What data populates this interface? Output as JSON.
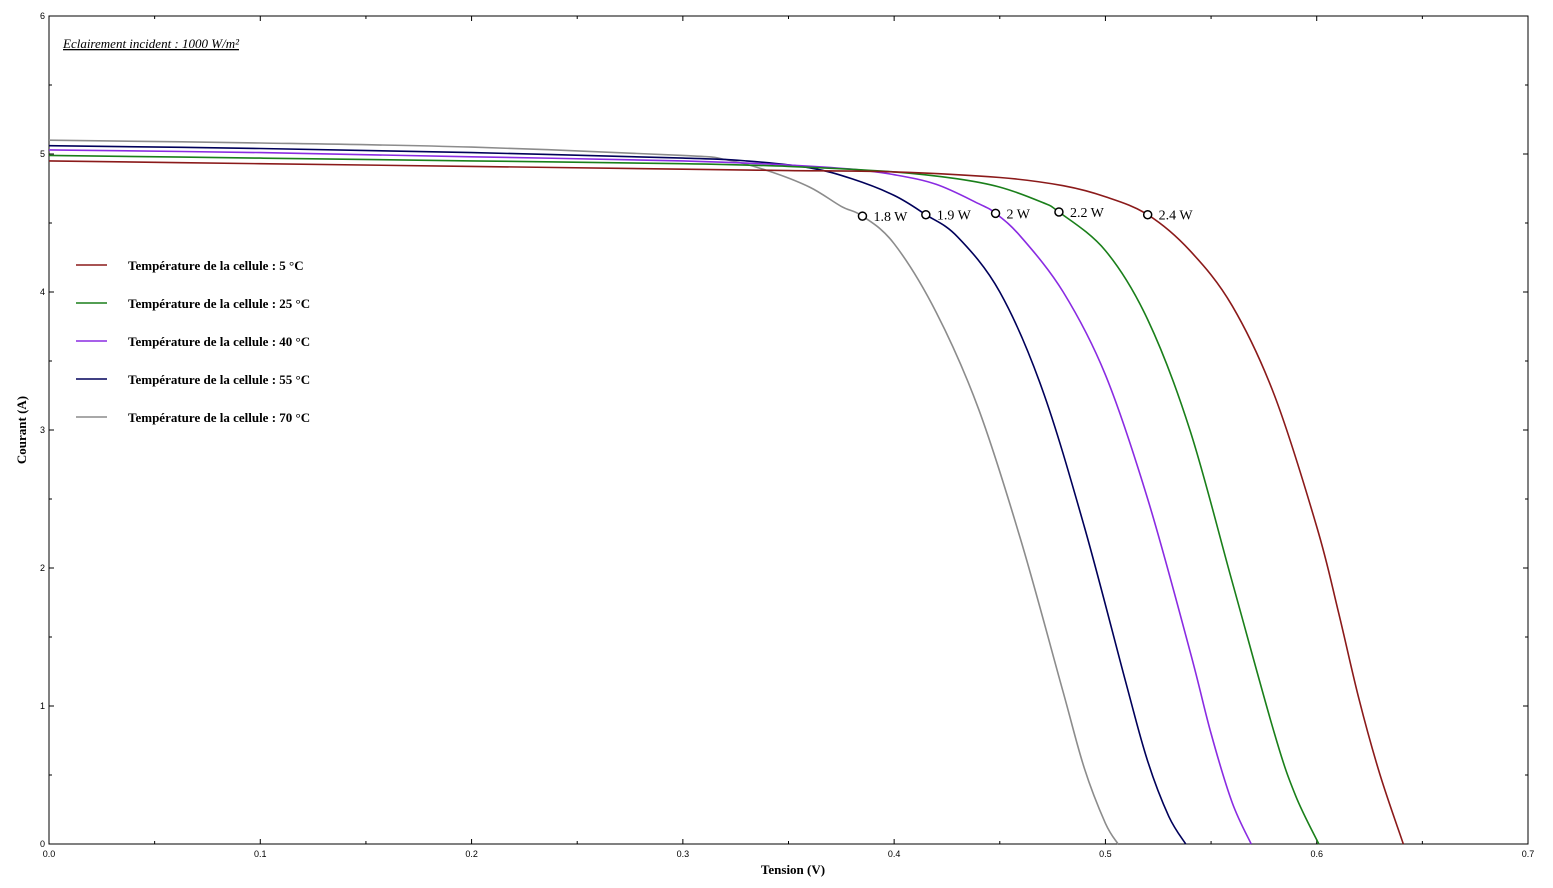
{
  "chart_data": {
    "type": "line",
    "title": "",
    "note": "Eclairement incident : 1000 W/m²",
    "xlabel": "Tension (V)",
    "ylabel": "Courant (A)",
    "xlim": [
      0,
      0.7
    ],
    "ylim": [
      0,
      6
    ],
    "xticks": [
      "0.0",
      "0.1",
      "0.2",
      "0.3",
      "0.4",
      "0.5",
      "0.6",
      "0.7"
    ],
    "yticks": [
      "0",
      "1",
      "2",
      "3",
      "4",
      "5",
      "6"
    ],
    "grid": false,
    "legend_position": "left",
    "series": [
      {
        "name": "Température de la cellule : 5 °C",
        "color": "#8b1a1a",
        "x": [
          0,
          0.1,
          0.2,
          0.3,
          0.35,
          0.4,
          0.45,
          0.48,
          0.5,
          0.52,
          0.54,
          0.56,
          0.58,
          0.6,
          0.61,
          0.62,
          0.63,
          0.641
        ],
        "y": [
          4.95,
          4.93,
          4.91,
          4.89,
          4.88,
          4.87,
          4.83,
          4.77,
          4.69,
          4.56,
          4.3,
          3.9,
          3.25,
          2.3,
          1.7,
          1.05,
          0.5,
          0.0
        ],
        "mpp": {
          "x": 0.52,
          "y": 4.56,
          "label": "2.4 W"
        }
      },
      {
        "name": "Température de la cellule : 25 °C",
        "color": "#1a7f1a",
        "x": [
          0,
          0.1,
          0.2,
          0.3,
          0.35,
          0.4,
          0.43,
          0.45,
          0.47,
          0.478,
          0.5,
          0.52,
          0.54,
          0.56,
          0.58,
          0.59,
          0.601
        ],
        "y": [
          4.99,
          4.97,
          4.95,
          4.93,
          4.91,
          4.87,
          4.82,
          4.76,
          4.65,
          4.58,
          4.3,
          3.8,
          3.0,
          1.9,
          0.8,
          0.35,
          0.0
        ],
        "mpp": {
          "x": 0.478,
          "y": 4.58,
          "label": "2.2 W"
        }
      },
      {
        "name": "Température de la cellule : 40 °C",
        "color": "#8a2be2",
        "x": [
          0,
          0.1,
          0.2,
          0.3,
          0.35,
          0.38,
          0.4,
          0.42,
          0.44,
          0.448,
          0.46,
          0.48,
          0.5,
          0.52,
          0.54,
          0.55,
          0.56,
          0.569
        ],
        "y": [
          5.03,
          5.01,
          4.98,
          4.95,
          4.92,
          4.89,
          4.85,
          4.78,
          4.64,
          4.57,
          4.4,
          4.0,
          3.4,
          2.5,
          1.4,
          0.8,
          0.3,
          0.0
        ],
        "mpp": {
          "x": 0.448,
          "y": 4.57,
          "label": "2 W"
        }
      },
      {
        "name": "Température de la cellule : 55 °C",
        "color": "#00005a",
        "x": [
          0,
          0.1,
          0.2,
          0.3,
          0.33,
          0.36,
          0.38,
          0.4,
          0.415,
          0.43,
          0.45,
          0.47,
          0.49,
          0.51,
          0.52,
          0.53,
          0.538
        ],
        "y": [
          5.06,
          5.04,
          5.01,
          4.97,
          4.95,
          4.9,
          4.82,
          4.7,
          4.56,
          4.4,
          4.0,
          3.3,
          2.3,
          1.15,
          0.6,
          0.2,
          0.0
        ],
        "mpp": {
          "x": 0.415,
          "y": 4.56,
          "label": "1.9 W"
        }
      },
      {
        "name": "Température de la cellule : 70 °C",
        "color": "#8c8c8c",
        "x": [
          0,
          0.1,
          0.2,
          0.3,
          0.32,
          0.34,
          0.36,
          0.375,
          0.385,
          0.4,
          0.42,
          0.44,
          0.46,
          0.48,
          0.49,
          0.5,
          0.506
        ],
        "y": [
          5.1,
          5.08,
          5.05,
          4.99,
          4.96,
          4.88,
          4.76,
          4.62,
          4.55,
          4.35,
          3.85,
          3.15,
          2.2,
          1.1,
          0.55,
          0.15,
          0.0
        ],
        "mpp": {
          "x": 0.385,
          "y": 4.55,
          "label": "1.8 W"
        }
      }
    ]
  }
}
